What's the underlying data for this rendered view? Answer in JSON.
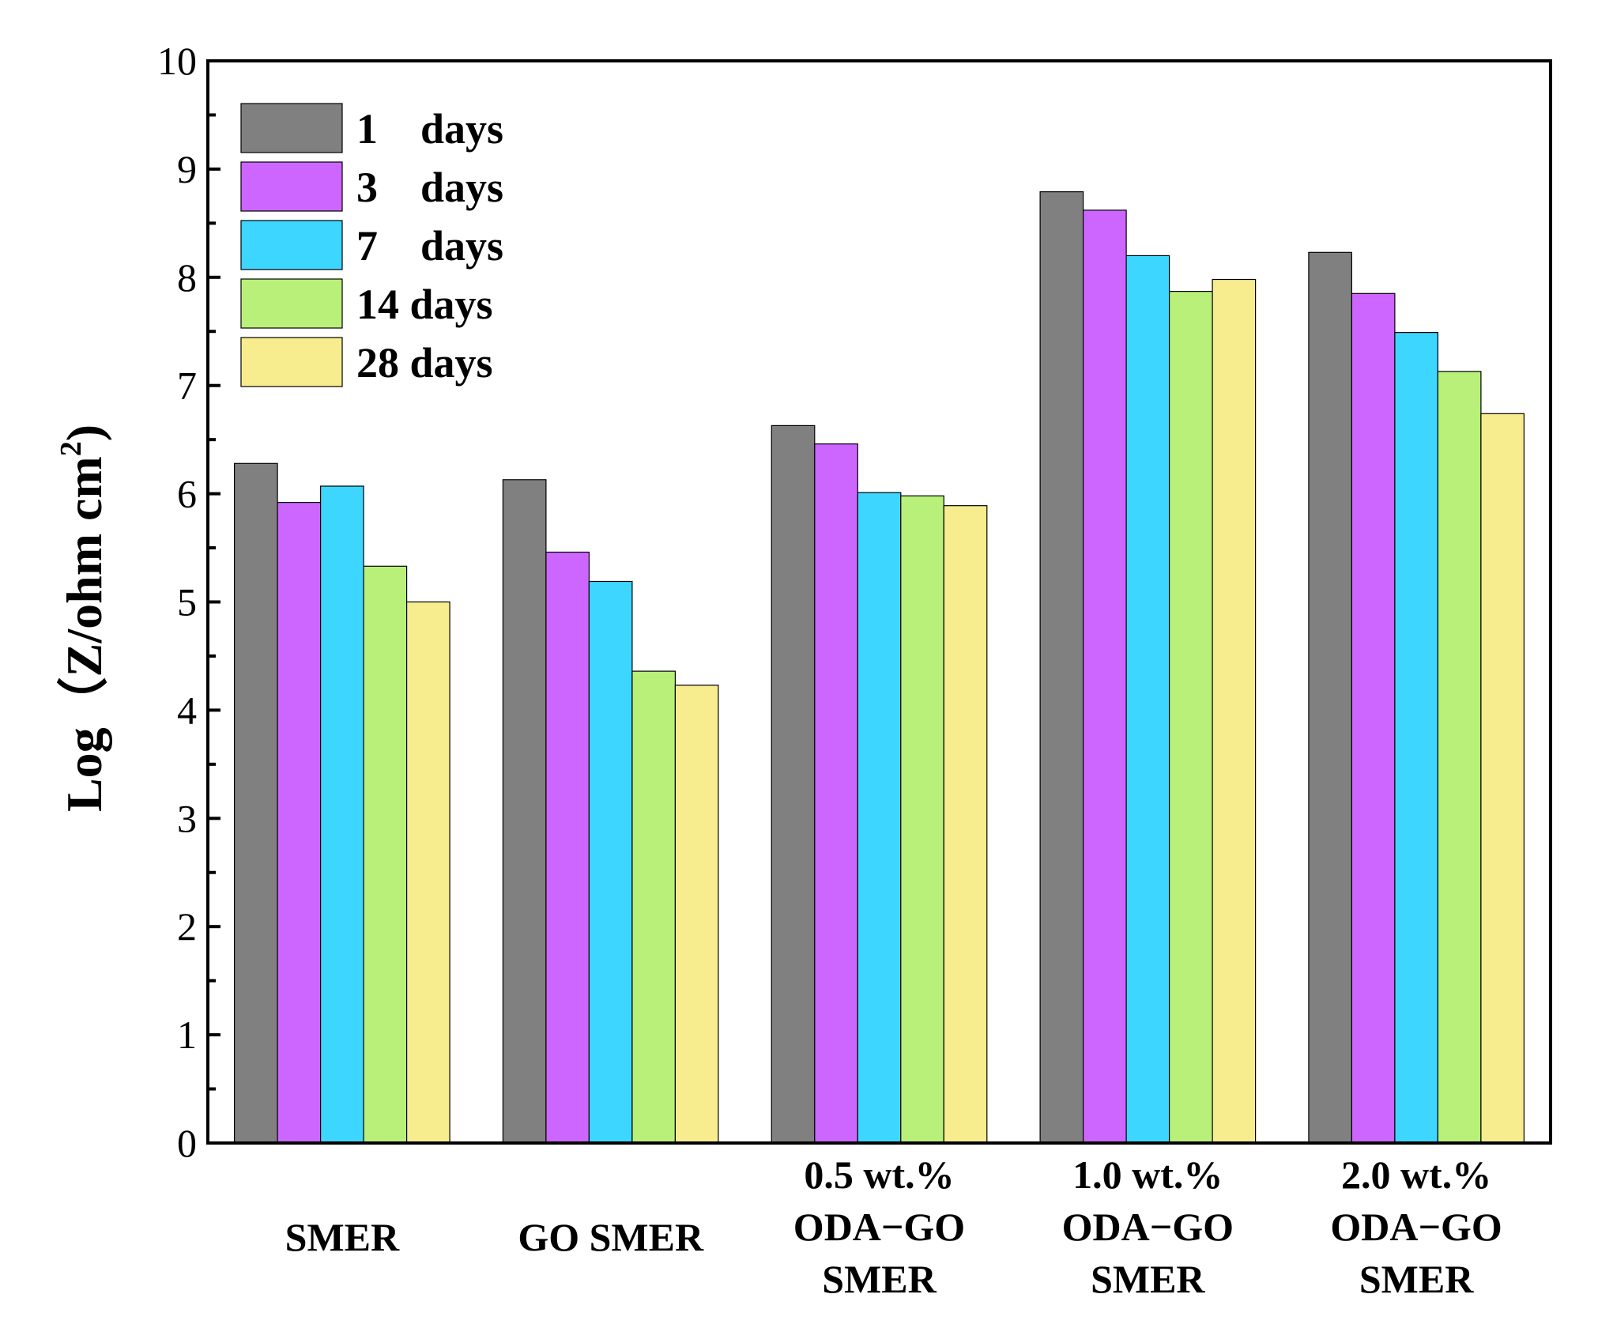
{
  "chart_data": {
    "type": "bar",
    "title": "",
    "xlabel": "",
    "ylabel_parts": [
      "Log",
      "（Z/ohm cm",
      "2",
      ")"
    ],
    "ylim": [
      0,
      10
    ],
    "yticks": [
      "0",
      "1",
      "2",
      "3",
      "4",
      "5",
      "6",
      "7",
      "8",
      "9",
      "10"
    ],
    "categories": [
      [
        "SMER"
      ],
      [
        "GO SMER"
      ],
      [
        "0.5 wt.%",
        "ODA−GO",
        "SMER"
      ],
      [
        "1.0 wt.%",
        "ODA−GO",
        "SMER"
      ],
      [
        "2.0 wt.%",
        "ODA−GO",
        "SMER"
      ]
    ],
    "legend_position": "top-left",
    "series": [
      {
        "name": "1    days",
        "color": "#808080",
        "values": [
          6.28,
          6.13,
          6.63,
          8.79,
          8.23
        ]
      },
      {
        "name": "3    days",
        "color": "#cc66ff",
        "values": [
          5.92,
          5.46,
          6.46,
          8.62,
          7.85
        ]
      },
      {
        "name": "7    days",
        "color": "#3dd6ff",
        "values": [
          6.07,
          5.19,
          6.01,
          8.2,
          7.49
        ]
      },
      {
        "name": "14 days",
        "color": "#b8f07a",
        "values": [
          5.33,
          4.36,
          5.98,
          7.87,
          7.13
        ]
      },
      {
        "name": "28 days",
        "color": "#f7ed8f",
        "values": [
          5.0,
          4.23,
          5.89,
          7.98,
          6.74
        ]
      }
    ]
  }
}
